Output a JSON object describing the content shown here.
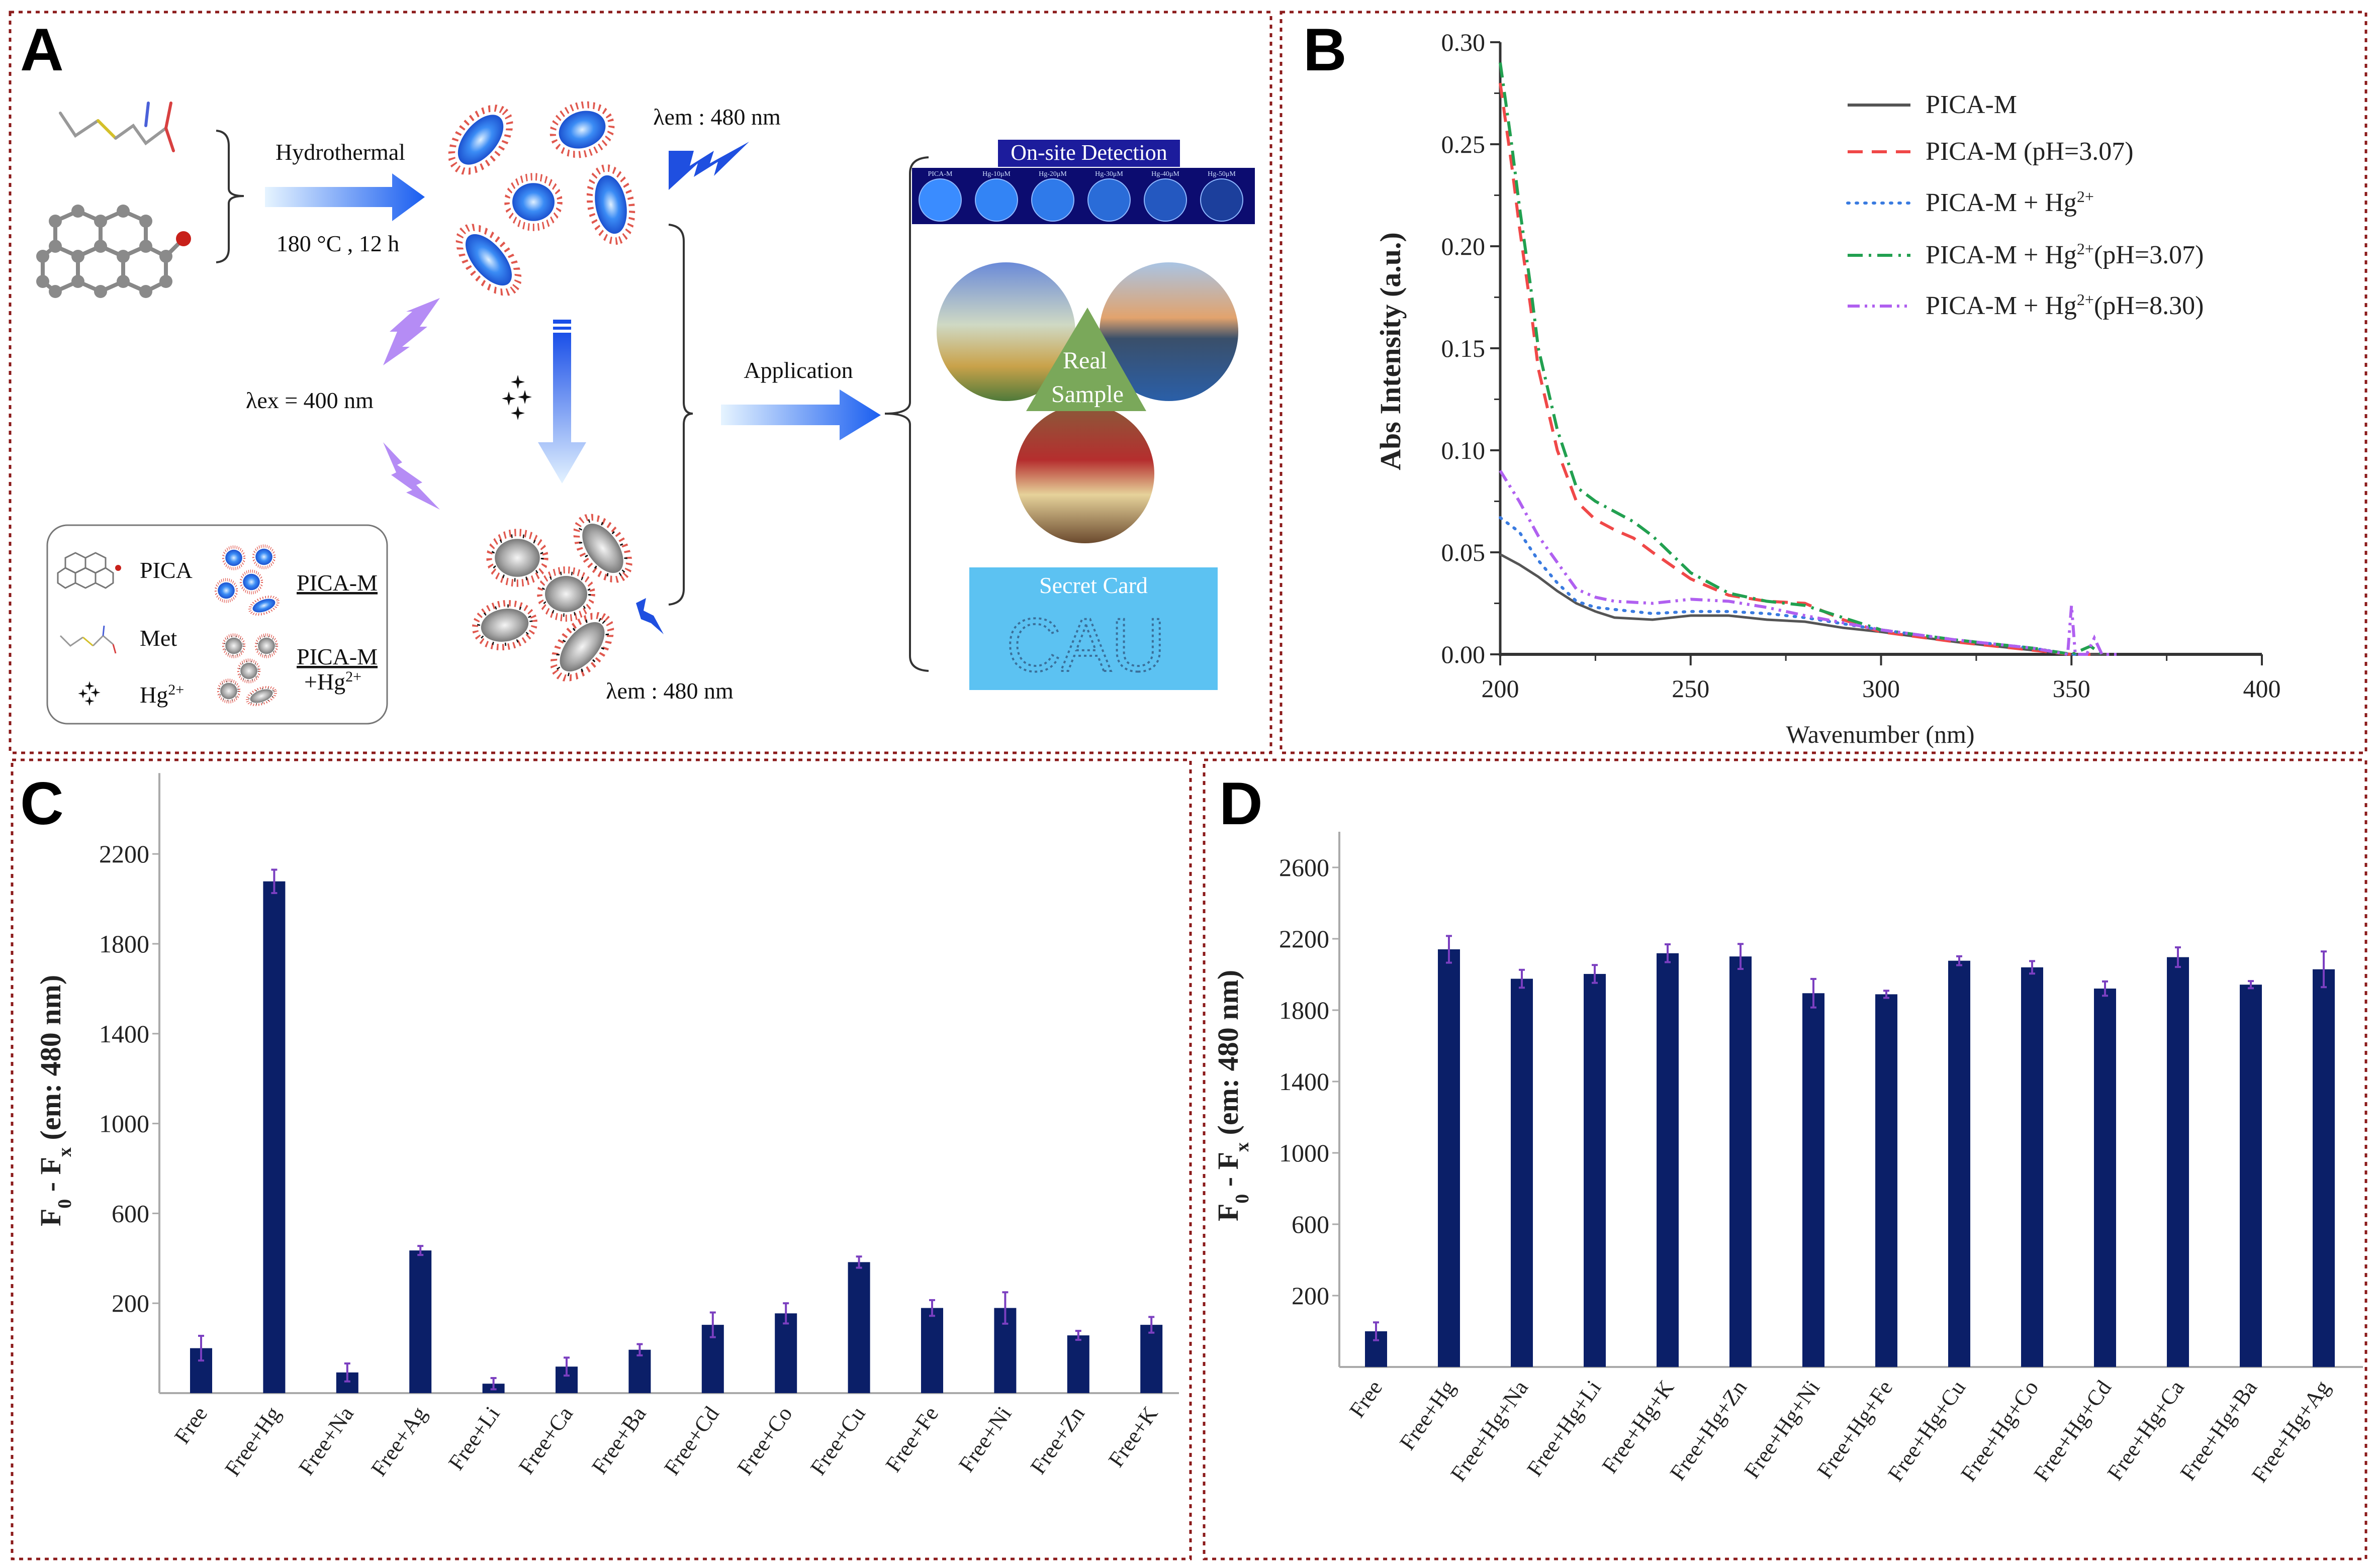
{
  "panels": {
    "a": "A",
    "b": "B",
    "c": "C",
    "d": "D"
  },
  "diagram": {
    "hydrothermal": "Hydrothermal",
    "conditions": "180 °C , 12 h",
    "lambda_em_top": "λem : 480 nm",
    "lambda_ex": "λex = 400 nm",
    "lambda_em_bottom": "λem : 480 nm",
    "application": "Application",
    "onsite_title": "On-site Detection",
    "wells": [
      "PICA-M",
      "Hg-10μM",
      "Hg-20μM",
      "Hg-30μM",
      "Hg-40μM",
      "Hg-50μM"
    ],
    "real_sample": [
      "Real",
      "Sample"
    ],
    "secret_card": "Secret Card",
    "card_text": "CAU",
    "legend": {
      "pica": "PICA",
      "met": "Met",
      "hg": "Hg",
      "hg_sup": "2+",
      "pica_m": "PICA-M",
      "pica_m_hg_line1": "PICA-M",
      "pica_m_hg_line2": "+Hg",
      "pica_m_hg_sup": "2+"
    },
    "colors": {
      "particle_blue": "#2f7df0",
      "quenched_gray": "#9a9a9a",
      "excitation_purple": "#b58cf5",
      "emission_blue": "#1f4fe0",
      "real_sample_green": "#7aa85a",
      "secret_card_blue": "#5cc2f2",
      "onsite_title_bg": "#1c1c9c"
    }
  },
  "chart_data": [
    {
      "panel": "B",
      "type": "line",
      "xlabel": "Wavenumber (nm)",
      "ylabel": "Abs Intensity (a.u.)",
      "xlim": [
        200,
        400
      ],
      "ylim": [
        0,
        0.3
      ],
      "xticks": [
        "200",
        "250",
        "300",
        "350",
        "400"
      ],
      "yticks": [
        "0.00",
        "0.05",
        "0.10",
        "0.15",
        "0.20",
        "0.25",
        "0.30"
      ],
      "grid": false,
      "legend_position": "top-right",
      "series": [
        {
          "name": {
            "text": "PICA-M",
            "sup": "",
            "suffix": ""
          },
          "color": "#555555",
          "style": "solid",
          "x": [
            200,
            205,
            210,
            215,
            220,
            225,
            230,
            240,
            250,
            255,
            260,
            270,
            280,
            290,
            300,
            320,
            340,
            350,
            360
          ],
          "y": [
            0.049,
            0.044,
            0.038,
            0.031,
            0.025,
            0.021,
            0.018,
            0.017,
            0.019,
            0.019,
            0.019,
            0.017,
            0.016,
            0.013,
            0.011,
            0.006,
            0.002,
            0.0,
            0.0
          ]
        },
        {
          "name": {
            "text": "PICA-M (pH=3.07)",
            "sup": "",
            "suffix": ""
          },
          "color": "#f04848",
          "style": "dashed",
          "x": [
            200,
            203,
            205,
            208,
            210,
            215,
            220,
            225,
            230,
            235,
            240,
            250,
            260,
            270,
            280,
            290,
            300,
            320,
            340,
            350,
            355
          ],
          "y": [
            0.28,
            0.24,
            0.21,
            0.17,
            0.14,
            0.1,
            0.075,
            0.066,
            0.061,
            0.057,
            0.05,
            0.037,
            0.029,
            0.026,
            0.025,
            0.017,
            0.011,
            0.006,
            0.002,
            0.0,
            0.0
          ]
        },
        {
          "name": {
            "text": "PICA-M + Hg",
            "sup": "2+",
            "suffix": ""
          },
          "color": "#3a7be0",
          "style": "dotted",
          "x": [
            200,
            205,
            210,
            215,
            220,
            225,
            230,
            240,
            250,
            260,
            270,
            280,
            300,
            320,
            340,
            350,
            355
          ],
          "y": [
            0.067,
            0.06,
            0.046,
            0.035,
            0.026,
            0.023,
            0.022,
            0.02,
            0.021,
            0.021,
            0.02,
            0.018,
            0.012,
            0.007,
            0.003,
            0.0,
            0.0
          ]
        },
        {
          "name": {
            "text": "PICA-M + Hg",
            "sup": "2+",
            "suffix": "(pH=3.07)"
          },
          "color": "#22a050",
          "style": "dashdot",
          "x": [
            200,
            203,
            205,
            208,
            210,
            215,
            220,
            225,
            230,
            235,
            240,
            250,
            260,
            270,
            280,
            290,
            300,
            320,
            340,
            350,
            355,
            358
          ],
          "y": [
            0.29,
            0.25,
            0.22,
            0.18,
            0.15,
            0.11,
            0.082,
            0.075,
            0.07,
            0.065,
            0.058,
            0.04,
            0.03,
            0.026,
            0.024,
            0.018,
            0.012,
            0.007,
            0.003,
            0.0,
            0.004,
            0.0
          ]
        },
        {
          "name": {
            "text": "PICA-M + Hg",
            "sup": "2+",
            "suffix": "(pH=8.30)"
          },
          "color": "#b060f0",
          "style": "dashdotdot",
          "x": [
            200,
            205,
            210,
            215,
            220,
            225,
            230,
            240,
            250,
            260,
            270,
            280,
            300,
            320,
            340,
            349,
            350,
            351,
            354,
            356,
            358,
            362
          ],
          "y": [
            0.09,
            0.075,
            0.058,
            0.045,
            0.032,
            0.028,
            0.026,
            0.025,
            0.027,
            0.026,
            0.023,
            0.019,
            0.012,
            0.007,
            0.003,
            0.0,
            0.024,
            0.0,
            0.0,
            0.008,
            0.0,
            0.0
          ]
        }
      ]
    },
    {
      "panel": "C",
      "type": "bar",
      "xlabel": "",
      "ylabel": {
        "f": "F",
        "sub0": "0",
        "mid": " - F",
        "subx": "x",
        "rest": " (em: 480 nm)"
      },
      "ylim": [
        -200,
        2560
      ],
      "yticks": [
        "200",
        "600",
        "1000",
        "1400",
        "1800",
        "2200"
      ],
      "bar_color": "#0b1f68",
      "error_color": "#7b3fc0",
      "categories": [
        "Free",
        "Free+Hg",
        "Free+Na",
        "Free+Ag",
        "Free+Li",
        "Free+Ca",
        "Free+Ba",
        "Free+Cd",
        "Free+Co",
        "Free+Cu",
        "Free+Fe",
        "Free+Ni",
        "Free+Zn",
        "Free+K"
      ],
      "values": [
        0,
        2078,
        -108,
        435,
        -158,
        -82,
        -7,
        104,
        155,
        383,
        179,
        179,
        57,
        104
      ],
      "errors": [
        55,
        52,
        40,
        20,
        25,
        40,
        25,
        55,
        45,
        25,
        35,
        70,
        20,
        35
      ]
    },
    {
      "panel": "D",
      "type": "bar",
      "xlabel": "",
      "ylabel": {
        "f": "F",
        "sub0": "0",
        "mid": " - F",
        "subx": "x",
        "rest": " (em: 480 nm)"
      },
      "ylim": [
        -200,
        2800
      ],
      "yticks": [
        "200",
        "600",
        "1000",
        "1400",
        "1800",
        "2200",
        "2600"
      ],
      "bar_color": "#0b1f68",
      "error_color": "#7b3fc0",
      "categories": [
        "Free",
        "Free+Hg",
        "Free+Hg+Na",
        "Free+Hg+Li",
        "Free+Hg+K",
        "Free+Hg+Zn",
        "Free+Hg+Ni",
        "Free+Hg+Fe",
        "Free+Hg+Cu",
        "Free+Hg+Co",
        "Free+Hg+Cd",
        "Free+Hg+Ca",
        "Free+Hg+Ba",
        "Free+Hg+Ag"
      ],
      "values": [
        0,
        2141,
        1976,
        2003,
        2119,
        2101,
        1895,
        1889,
        2077,
        2040,
        1921,
        2097,
        1943,
        2029
      ],
      "errors": [
        50,
        75,
        50,
        50,
        50,
        70,
        80,
        20,
        25,
        35,
        40,
        55,
        20,
        100
      ]
    }
  ]
}
